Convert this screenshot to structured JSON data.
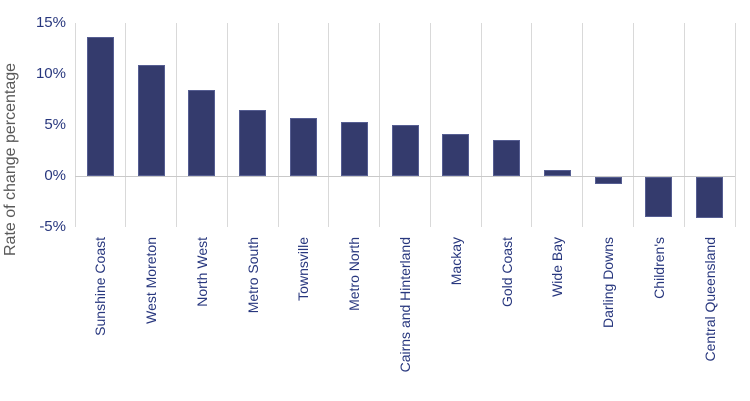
{
  "chart_data": {
    "type": "bar",
    "title": "",
    "xlabel": "",
    "ylabel": "Rate of change percentage",
    "categories": [
      "Sunshine Coast",
      "West Moreton",
      "North West",
      "Metro South",
      "Townsville",
      "Metro North",
      "Cairns and Hinterland",
      "Mackay",
      "Gold Coast",
      "Wide Bay",
      "Darling Downs",
      "Children's",
      "Central Queensland"
    ],
    "values": [
      13.6,
      10.9,
      8.4,
      6.5,
      5.7,
      5.3,
      5.0,
      4.1,
      3.5,
      0.6,
      -0.7,
      -3.9,
      -4.0
    ],
    "ylim": [
      -5,
      15
    ],
    "y_ticks": [
      {
        "value": 15,
        "label": "15%"
      },
      {
        "value": 10,
        "label": "10%"
      },
      {
        "value": 5,
        "label": "5%"
      },
      {
        "value": 0,
        "label": "0%"
      },
      {
        "value": -5,
        "label": "-5%"
      }
    ],
    "grid": "vertical category separators, no horizontal gridlines except zero axis line",
    "legend_position": "none",
    "colors": {
      "bar_fill": "#343B6D",
      "bar_border": "#565E92",
      "tick_label": "#28377E",
      "category_label": "#28377E",
      "axis_title": "#595959",
      "gridline": "#D9D9D9",
      "zero_line": "#C9C9C9",
      "background": "#FFFFFF"
    }
  }
}
